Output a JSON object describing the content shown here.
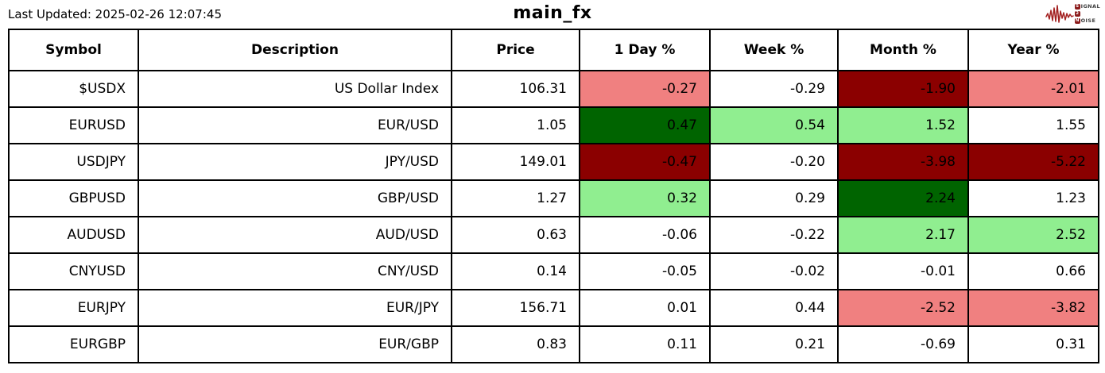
{
  "header": {
    "logo": {
      "line1_box": "S",
      "line1_text": "IGNAL",
      "line2_box": "2",
      "line3_box": "N",
      "line3_text": "OISE"
    }
  },
  "colors": {
    "white": "#ffffff",
    "lightcoral": "#f08080",
    "darkred": "#8b0000",
    "lightgreen": "#90ee90",
    "darkgreen": "#006400",
    "border": "#000000",
    "logo_red": "#a32020"
  },
  "chart_data": {
    "type": "table",
    "title": "main_fx",
    "last_updated": "Last Updated: 2025-02-26 12:07:45",
    "columns": [
      "Symbol",
      "Description",
      "Price",
      "1 Day %",
      "Week %",
      "Month %",
      "Year %"
    ],
    "rows": [
      {
        "symbol": "$USDX",
        "description": "US Dollar Index",
        "price": "106.31",
        "day": "-0.27",
        "week": "-0.29",
        "month": "-1.90",
        "year": "-2.01",
        "cell_colors": {
          "day": "lightcoral",
          "week": "white",
          "month": "darkred",
          "year": "lightcoral"
        }
      },
      {
        "symbol": "EURUSD",
        "description": "EUR/USD",
        "price": "1.05",
        "day": "0.47",
        "week": "0.54",
        "month": "1.52",
        "year": "1.55",
        "cell_colors": {
          "day": "darkgreen",
          "week": "lightgreen",
          "month": "lightgreen",
          "year": "white"
        }
      },
      {
        "symbol": "USDJPY",
        "description": "JPY/USD",
        "price": "149.01",
        "day": "-0.47",
        "week": "-0.20",
        "month": "-3.98",
        "year": "-5.22",
        "cell_colors": {
          "day": "darkred",
          "week": "white",
          "month": "darkred",
          "year": "darkred"
        }
      },
      {
        "symbol": "GBPUSD",
        "description": "GBP/USD",
        "price": "1.27",
        "day": "0.32",
        "week": "0.29",
        "month": "2.24",
        "year": "1.23",
        "cell_colors": {
          "day": "lightgreen",
          "week": "white",
          "month": "darkgreen",
          "year": "white"
        }
      },
      {
        "symbol": "AUDUSD",
        "description": "AUD/USD",
        "price": "0.63",
        "day": "-0.06",
        "week": "-0.22",
        "month": "2.17",
        "year": "2.52",
        "cell_colors": {
          "day": "white",
          "week": "white",
          "month": "lightgreen",
          "year": "lightgreen"
        }
      },
      {
        "symbol": "CNYUSD",
        "description": "CNY/USD",
        "price": "0.14",
        "day": "-0.05",
        "week": "-0.02",
        "month": "-0.01",
        "year": "0.66",
        "cell_colors": {
          "day": "white",
          "week": "white",
          "month": "white",
          "year": "white"
        }
      },
      {
        "symbol": "EURJPY",
        "description": "EUR/JPY",
        "price": "156.71",
        "day": "0.01",
        "week": "0.44",
        "month": "-2.52",
        "year": "-3.82",
        "cell_colors": {
          "day": "white",
          "week": "white",
          "month": "lightcoral",
          "year": "lightcoral"
        }
      },
      {
        "symbol": "EURGBP",
        "description": "EUR/GBP",
        "price": "0.83",
        "day": "0.11",
        "week": "0.21",
        "month": "-0.69",
        "year": "0.31",
        "cell_colors": {
          "day": "white",
          "week": "white",
          "month": "white",
          "year": "white"
        }
      }
    ]
  }
}
